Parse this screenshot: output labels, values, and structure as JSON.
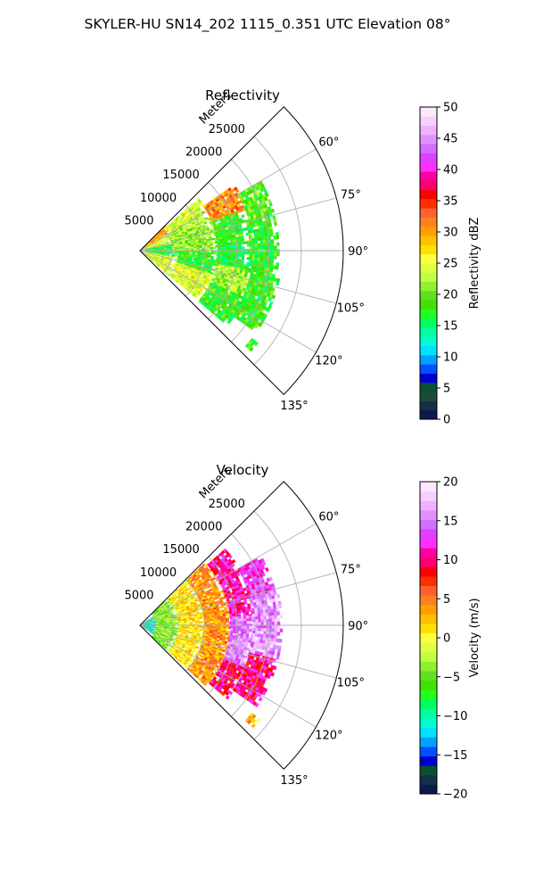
{
  "figure_title": "SKYLER-HU  SN14_202  1115_0.351 UTC Elevation 08°",
  "chart_data": [
    {
      "type": "heatmap",
      "projection": "polar-sector",
      "title": "Reflectivity",
      "radial_label": "Meters",
      "radial_ticks": [
        5000,
        10000,
        15000,
        20000,
        25000
      ],
      "radial_tick_labels": [
        "5000",
        "10000",
        "15000",
        "20000",
        "25000"
      ],
      "r_max_m": 31500,
      "azimuth_range_deg": [
        45,
        135
      ],
      "azimuth_ticks_deg": [
        60,
        75,
        90,
        105,
        120,
        135
      ],
      "azimuth_tick_labels": [
        "60°",
        "75°",
        "90°",
        "105°",
        "120°",
        "135°"
      ],
      "grid": true,
      "colorbar": {
        "label": "Reflectivity dBZ",
        "min": 0,
        "max": 50,
        "ticks": [
          0,
          5,
          10,
          15,
          20,
          25,
          30,
          35,
          40,
          45,
          50
        ],
        "tick_labels": [
          "0",
          "5",
          "10",
          "15",
          "20",
          "25",
          "30",
          "35",
          "40",
          "45",
          "50"
        ],
        "colors": [
          "#0a1a4a",
          "#14304a",
          "#1e4a3a",
          "#0a5030",
          "#0000d0",
          "#0050ff",
          "#00a0ff",
          "#00e0ff",
          "#00ffd0",
          "#00ffa0",
          "#00ff60",
          "#20ff20",
          "#40e000",
          "#60e020",
          "#90f030",
          "#c0ff40",
          "#e0ff40",
          "#ffff40",
          "#ffe000",
          "#ffc000",
          "#ffa000",
          "#ff8020",
          "#ff6030",
          "#ff3000",
          "#ff0000",
          "#ff0070",
          "#ff00a0",
          "#ff30ff",
          "#e040ff",
          "#d070ff",
          "#e090ff",
          "#f0b0ff",
          "#f8d0ff",
          "#ffe8ff"
        ]
      },
      "echo_regions": [
        {
          "az": [
            46,
            58
          ],
          "r": [
            300,
            5500
          ],
          "dbz": 30
        },
        {
          "az": [
            58,
            78
          ],
          "r": [
            800,
            4500
          ],
          "dbz": 25
        },
        {
          "az": [
            78,
            100
          ],
          "r": [
            800,
            6000
          ],
          "dbz": 17
        },
        {
          "az": [
            100,
            130
          ],
          "r": [
            1000,
            6000
          ],
          "dbz": 24
        },
        {
          "az": [
            48,
            58
          ],
          "r": [
            5500,
            12000
          ],
          "dbz": 24
        },
        {
          "az": [
            58,
            72
          ],
          "r": [
            4500,
            12000
          ],
          "dbz": 22
        },
        {
          "az": [
            72,
            90
          ],
          "r": [
            5000,
            12000
          ],
          "dbz": 21
        },
        {
          "az": [
            90,
            108
          ],
          "r": [
            6000,
            12000
          ],
          "dbz": 18
        },
        {
          "az": [
            108,
            130
          ],
          "r": [
            6000,
            12000
          ],
          "dbz": 24
        },
        {
          "az": [
            55,
            68
          ],
          "r": [
            12000,
            17500
          ],
          "dbz": 31
        },
        {
          "az": [
            68,
            85
          ],
          "r": [
            12000,
            17000
          ],
          "dbz": 18
        },
        {
          "az": [
            85,
            100
          ],
          "r": [
            12000,
            17000
          ],
          "dbz": 17
        },
        {
          "az": [
            100,
            114
          ],
          "r": [
            12000,
            17500
          ],
          "dbz": 22
        },
        {
          "az": [
            114,
            130
          ],
          "r": [
            12000,
            17500
          ],
          "dbz": 18
        },
        {
          "az": [
            60,
            74
          ],
          "r": [
            17500,
            21500
          ],
          "dbz": 19
        },
        {
          "az": [
            74,
            100
          ],
          "r": [
            17000,
            21500
          ],
          "dbz": 18
        },
        {
          "az": [
            100,
            124
          ],
          "r": [
            17500,
            22000
          ],
          "dbz": 18
        },
        {
          "az": [
            128,
            132
          ],
          "r": [
            22000,
            23500
          ],
          "dbz": 19
        }
      ]
    },
    {
      "type": "heatmap",
      "projection": "polar-sector",
      "title": "Velocity",
      "radial_label": "Meters",
      "radial_ticks": [
        5000,
        10000,
        15000,
        20000,
        25000
      ],
      "radial_tick_labels": [
        "5000",
        "10000",
        "15000",
        "20000",
        "25000"
      ],
      "r_max_m": 31500,
      "azimuth_range_deg": [
        45,
        135
      ],
      "azimuth_ticks_deg": [
        60,
        75,
        90,
        105,
        120,
        135
      ],
      "azimuth_tick_labels": [
        "60°",
        "75°",
        "90°",
        "105°",
        "120°",
        "135°"
      ],
      "grid": true,
      "colorbar": {
        "label": "Velocity (m/s)",
        "min": -20,
        "max": 20,
        "ticks": [
          -20,
          -15,
          -10,
          -5,
          0,
          5,
          10,
          15,
          20
        ],
        "tick_labels": [
          "−20",
          "−15",
          "−10",
          "−5",
          "0",
          "5",
          "10",
          "15",
          "20"
        ],
        "colors": [
          "#0a1a4a",
          "#14304a",
          "#0a5030",
          "#0000d0",
          "#0050ff",
          "#00a0ff",
          "#00e0ff",
          "#00ffd0",
          "#00ffa0",
          "#00ff60",
          "#20ff20",
          "#40e000",
          "#60e020",
          "#90f030",
          "#c0ff40",
          "#e0ff40",
          "#ffff40",
          "#ffe000",
          "#ffc000",
          "#ffa000",
          "#ff8020",
          "#ff6030",
          "#ff3000",
          "#ff0000",
          "#ff0070",
          "#ff00a0",
          "#ff30ff",
          "#e040ff",
          "#d070ff",
          "#e090ff",
          "#f0b0ff",
          "#f8d0ff",
          "#ffe8ff"
        ]
      },
      "echo_regions": [
        {
          "az": [
            55,
            125
          ],
          "r": [
            0,
            2500
          ],
          "vel": -11
        },
        {
          "az": [
            46,
            132
          ],
          "r": [
            2500,
            6000
          ],
          "vel": -4
        },
        {
          "az": [
            46,
            132
          ],
          "r": [
            6000,
            10000
          ],
          "vel": 1
        },
        {
          "az": [
            46,
            132
          ],
          "r": [
            10000,
            14000
          ],
          "vel": 4
        },
        {
          "az": [
            48,
            85
          ],
          "r": [
            14000,
            17500
          ],
          "vel": 11
        },
        {
          "az": [
            85,
            112
          ],
          "r": [
            14000,
            17500
          ],
          "vel": 15
        },
        {
          "az": [
            112,
            130
          ],
          "r": [
            14000,
            17500
          ],
          "vel": 10
        },
        {
          "az": [
            60,
            76
          ],
          "r": [
            17500,
            21500
          ],
          "vel": 13
        },
        {
          "az": [
            76,
            104
          ],
          "r": [
            17500,
            22000
          ],
          "vel": 16
        },
        {
          "az": [
            104,
            124
          ],
          "r": [
            17500,
            22000
          ],
          "vel": 10
        },
        {
          "az": [
            128,
            132
          ],
          "r": [
            22000,
            23500
          ],
          "vel": 3
        }
      ]
    }
  ]
}
